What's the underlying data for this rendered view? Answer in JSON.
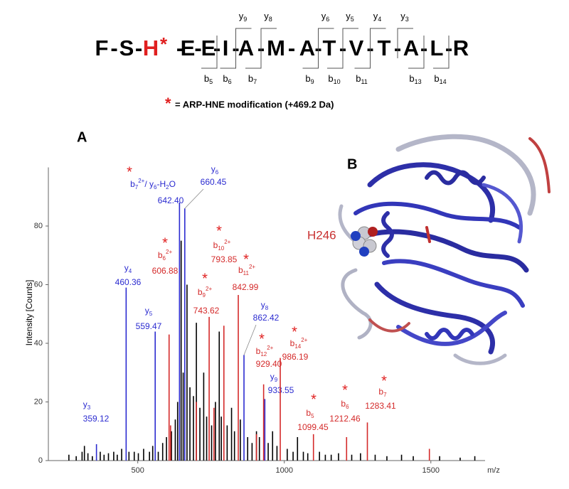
{
  "modification_mark": "*",
  "sequence": {
    "residues": [
      "F",
      "S",
      "H",
      "E",
      "E",
      "I",
      "A",
      "M",
      "A",
      "T",
      "V",
      "T",
      "A",
      "L",
      "R"
    ],
    "modified_index": 2,
    "separator": "-",
    "y_letter": "y",
    "y_ions": [
      9,
      8,
      6,
      5,
      4,
      3
    ],
    "b_letter": "b",
    "b_ions": [
      5,
      6,
      7,
      9,
      10,
      11,
      13,
      14
    ]
  },
  "note": "= ARP-HNE modification (+469.2 Da)",
  "panel_a": "A",
  "panel_b": {
    "label": "B",
    "residue": "H246"
  },
  "chart_data": {
    "type": "spectrum",
    "y_label": "Intensity [Counts]",
    "x_label": "m/z",
    "xlim": [
      195,
      1685
    ],
    "ylim": [
      0,
      100
    ],
    "xticks": [
      500,
      1000,
      1500
    ],
    "yticks": [
      0,
      20,
      40,
      60,
      80
    ],
    "colors": {
      "y": "#2b2bd0",
      "b": "#d42a2a"
    },
    "peaks": [
      {
        "mz": 359.12,
        "mz_label": "359.12",
        "intensity": 5.6,
        "kind": "y",
        "modified": false,
        "label": [
          {
            "text": "y"
          },
          {
            "sub": "3"
          }
        ]
      },
      {
        "mz": 460.36,
        "mz_label": "460.36",
        "intensity": 59,
        "kind": "y",
        "modified": false,
        "label": [
          {
            "text": "y"
          },
          {
            "sub": "4"
          }
        ]
      },
      {
        "mz": 559.47,
        "mz_label": "559.47",
        "intensity": 44,
        "kind": "y",
        "modified": false,
        "label": [
          {
            "text": "y"
          },
          {
            "sub": "5"
          }
        ]
      },
      {
        "mz": 606.88,
        "mz_label": "606.88",
        "intensity": 43,
        "kind": "b",
        "modified": true,
        "label": [
          {
            "text": "b"
          },
          {
            "sub": "6"
          },
          {
            "sup": "2+"
          }
        ]
      },
      {
        "mz": 642.4,
        "mz_label": "642.40",
        "intensity": 88,
        "kind": "y",
        "modified": true,
        "label": [
          {
            "text": "b"
          },
          {
            "sub": "7"
          },
          {
            "sup": "2+"
          },
          {
            "text": "/ y"
          },
          {
            "sub": "6"
          },
          {
            "text": "-H"
          },
          {
            "sub": "2"
          },
          {
            "text": "O"
          }
        ]
      },
      {
        "mz": 660.45,
        "mz_label": "660.45",
        "intensity": 86,
        "kind": "y",
        "modified": false,
        "label": [
          {
            "text": "y"
          },
          {
            "sub": "6"
          }
        ]
      },
      {
        "mz": 743.62,
        "mz_label": "743.62",
        "intensity": 49,
        "kind": "b",
        "modified": true,
        "label": [
          {
            "text": "b"
          },
          {
            "sub": "9"
          },
          {
            "sup": "2+"
          }
        ]
      },
      {
        "mz": 793.85,
        "mz_label": "793.85",
        "intensity": 46,
        "kind": "b",
        "modified": true,
        "label": [
          {
            "text": "b"
          },
          {
            "sub": "10"
          },
          {
            "sup": "2+"
          }
        ]
      },
      {
        "mz": 842.99,
        "mz_label": "842.99",
        "intensity": 56.5,
        "kind": "b",
        "modified": true,
        "label": [
          {
            "text": "b"
          },
          {
            "sub": "11"
          },
          {
            "sup": "2+"
          }
        ]
      },
      {
        "mz": 862.42,
        "mz_label": "862.42",
        "intensity": 36,
        "kind": "y",
        "modified": false,
        "label": [
          {
            "text": "y"
          },
          {
            "sub": "8"
          }
        ]
      },
      {
        "mz": 929.4,
        "mz_label": "929.40",
        "intensity": 26,
        "kind": "b",
        "modified": true,
        "label": [
          {
            "text": "b"
          },
          {
            "sub": "12"
          },
          {
            "sup": "2+"
          }
        ]
      },
      {
        "mz": 933.55,
        "mz_label": "933.55",
        "intensity": 21,
        "kind": "y",
        "modified": false,
        "label": [
          {
            "text": "y"
          },
          {
            "sub": "9"
          }
        ]
      },
      {
        "mz": 986.19,
        "mz_label": "986.19",
        "intensity": 35,
        "kind": "b",
        "modified": true,
        "label": [
          {
            "text": "b"
          },
          {
            "sub": "14"
          },
          {
            "sup": "2+"
          }
        ]
      },
      {
        "mz": 1099.45,
        "mz_label": "1099.45",
        "intensity": 9,
        "kind": "b",
        "modified": true,
        "label": [
          {
            "text": "b"
          },
          {
            "sub": "5"
          }
        ]
      },
      {
        "mz": 1212.46,
        "mz_label": "1212.46",
        "intensity": 8,
        "kind": "b",
        "modified": true,
        "label": [
          {
            "text": "b"
          },
          {
            "sub": "6"
          }
        ]
      },
      {
        "mz": 1283.41,
        "mz_label": "1283.41",
        "intensity": 13,
        "kind": "b",
        "modified": true,
        "label": [
          {
            "text": "b"
          },
          {
            "sub": "7"
          }
        ]
      }
    ],
    "background": {
      "color": "#000000",
      "x": [
        265,
        290,
        310,
        318,
        330,
        345,
        372,
        385,
        400,
        418,
        430,
        445,
        470,
        488,
        502,
        520,
        540,
        551,
        570,
        585,
        598,
        615,
        628,
        636,
        648,
        655,
        668,
        678,
        690,
        700,
        712,
        725,
        735,
        752,
        765,
        778,
        785,
        805,
        820,
        830,
        850,
        875,
        890,
        905,
        915,
        945,
        960,
        975,
        1010,
        1030,
        1045,
        1065,
        1080,
        1120,
        1140,
        1160,
        1185,
        1230,
        1260,
        1310,
        1350,
        1400,
        1440,
        1530,
        1600,
        1650
      ],
      "values": [
        2,
        1.5,
        3,
        5,
        2.5,
        1.5,
        3,
        2,
        2.5,
        3,
        2,
        4,
        3,
        3,
        2.5,
        4,
        3,
        5,
        3,
        6,
        8,
        10,
        14,
        20,
        75,
        30,
        60,
        25,
        22,
        47,
        18,
        30,
        15,
        12,
        20,
        44,
        15,
        12,
        18,
        10,
        14,
        8,
        6,
        10,
        8,
        6,
        10,
        5,
        4,
        3,
        8,
        3,
        2.5,
        3,
        2,
        2,
        2.5,
        2,
        2.5,
        2,
        1.5,
        2,
        1.5,
        1.5,
        1,
        1.5
      ]
    },
    "other_peaks": {
      "color": "#d42a2a",
      "x": [
        612,
        700,
        760,
        905,
        1495
      ],
      "values": [
        12,
        20,
        18,
        9,
        4
      ]
    }
  }
}
